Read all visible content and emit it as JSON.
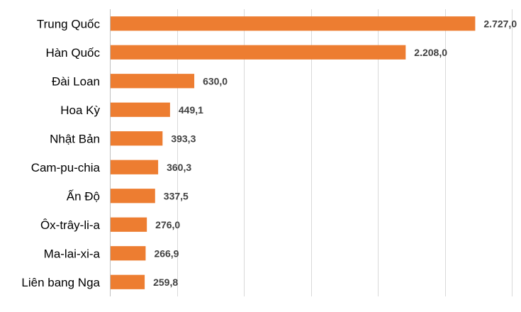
{
  "chart_data": {
    "type": "bar",
    "orientation": "horizontal",
    "categories": [
      "Trung Quốc",
      "Hàn Quốc",
      "Đài Loan",
      "Hoa Kỳ",
      "Nhật Bản",
      "Cam-pu-chia",
      "Ấn Độ",
      "Ôx-trây-li-a",
      "Ma-lai-xi-a",
      "Liên bang Nga"
    ],
    "values": [
      2727.0,
      2208.0,
      630.0,
      449.1,
      393.3,
      360.3,
      337.5,
      276.0,
      266.9,
      259.8
    ],
    "value_labels": [
      "2.727,0",
      "2.208,0",
      "630,0",
      "449,1",
      "393,3",
      "360,3",
      "337,5",
      "276,0",
      "266,9",
      "259,8"
    ],
    "xlim": [
      0,
      3000
    ],
    "grid": true,
    "bar_color": "#ED7D31",
    "title": "",
    "xlabel": "",
    "ylabel": ""
  }
}
